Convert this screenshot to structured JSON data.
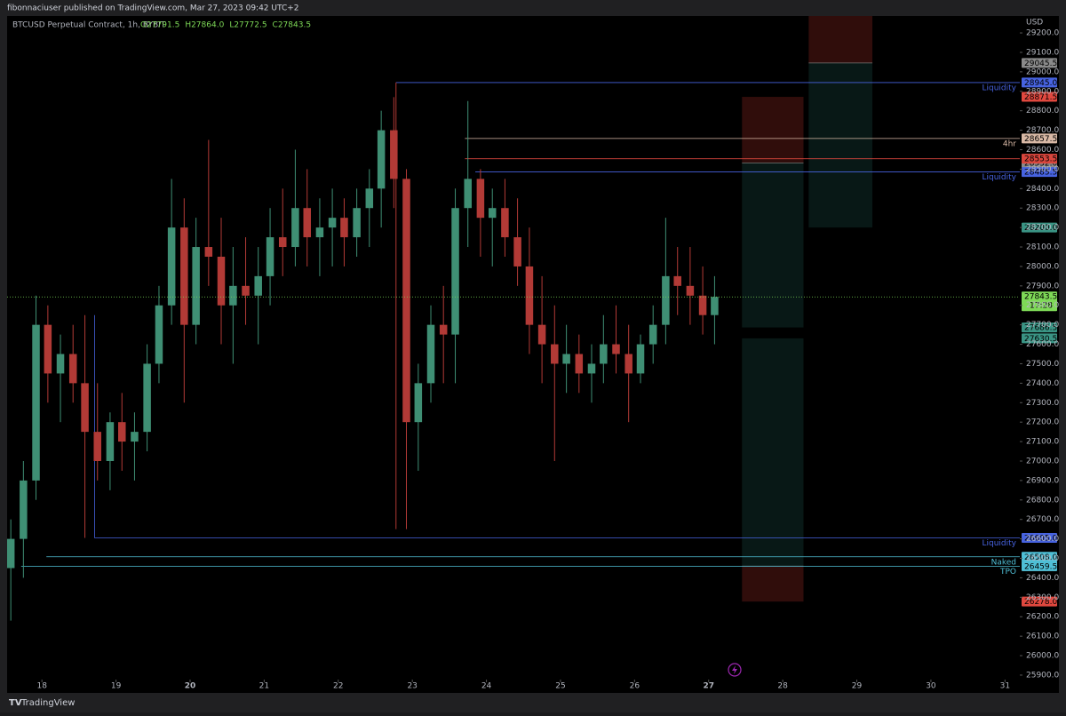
{
  "header": {
    "publisher": "fibonnaciuser published on TradingView.com, Mar 27, 2023 09:42 UTC+2"
  },
  "footer": {
    "brand": "TradingView"
  },
  "chart_data": {
    "type": "candlestick",
    "title": "BTCUSD Perpetual Contract, 1h, BYBIT",
    "legend_values": [
      "O27791.5",
      "H27864.0",
      "L27772.5",
      "C27843.5"
    ],
    "y_axis_label": "USD",
    "countdown": "17:28",
    "up_color": "#3f8f74",
    "down_color": "#b23a36",
    "x": [
      17.58,
      17.75,
      17.92,
      18.08,
      18.25,
      18.42,
      18.58,
      18.75,
      18.92,
      19.08,
      19.25,
      19.42,
      19.58,
      19.75,
      19.92,
      20.08,
      20.25,
      20.42,
      20.58,
      20.75,
      20.92,
      21.08,
      21.25,
      21.42,
      21.58,
      21.75,
      21.92,
      22.08,
      22.25,
      22.42,
      22.58,
      22.75,
      22.92,
      23.08,
      23.25,
      23.42,
      23.58,
      23.75,
      23.92,
      24.08,
      24.25,
      24.42,
      24.58,
      24.75,
      24.92,
      25.08,
      25.25,
      25.42,
      25.58,
      25.75,
      25.92,
      26.08,
      26.25,
      26.42,
      26.58,
      26.75,
      26.92,
      27.08
    ],
    "open": [
      26450,
      26600,
      26900,
      27700,
      27450,
      27550,
      27400,
      27150,
      27000,
      27200,
      27100,
      27150,
      27500,
      27800,
      28200,
      27700,
      28100,
      28050,
      27800,
      27900,
      27850,
      27950,
      28150,
      28100,
      28300,
      28150,
      28200,
      28250,
      28150,
      28300,
      28400,
      28700,
      28450,
      27200,
      27400,
      27700,
      27650,
      28300,
      28450,
      28250,
      28300,
      28150,
      28000,
      27700,
      27600,
      27500,
      27550,
      27450,
      27500,
      27600,
      27550,
      27450,
      27600,
      27700,
      27950,
      27900,
      27850,
      27750
    ],
    "high": [
      26700,
      27000,
      27850,
      27800,
      27650,
      27700,
      27750,
      27400,
      27250,
      27350,
      27250,
      27600,
      27900,
      28450,
      28350,
      28250,
      28650,
      28250,
      28100,
      28150,
      28100,
      28300,
      28400,
      28600,
      28500,
      28350,
      28400,
      28350,
      28400,
      28500,
      28800,
      28870,
      28500,
      27500,
      27800,
      27900,
      28400,
      28850,
      28500,
      28400,
      28450,
      28350,
      28200,
      27950,
      27800,
      27700,
      27650,
      27600,
      27750,
      27800,
      27700,
      27650,
      27800,
      28250,
      28100,
      28100,
      28000,
      27950
    ],
    "low": [
      26180,
      26400,
      26800,
      27300,
      27200,
      27300,
      26605,
      26900,
      26850,
      26950,
      26900,
      27050,
      27400,
      27700,
      27300,
      27600,
      27900,
      27600,
      27500,
      27700,
      27600,
      27800,
      27950,
      28000,
      28000,
      27950,
      28000,
      28000,
      28050,
      28100,
      28200,
      28300,
      26650,
      26950,
      27300,
      27400,
      27400,
      28100,
      28050,
      28000,
      28050,
      27900,
      27550,
      27400,
      27000,
      27350,
      27350,
      27300,
      27400,
      27450,
      27200,
      27400,
      27500,
      27600,
      27750,
      27700,
      27650,
      27600
    ],
    "close": [
      26600,
      26900,
      27700,
      27450,
      27550,
      27400,
      27150,
      27000,
      27200,
      27100,
      27150,
      27500,
      27800,
      28200,
      27700,
      28100,
      28050,
      27800,
      27900,
      27850,
      27950,
      28150,
      28100,
      28300,
      28150,
      28200,
      28250,
      28150,
      28300,
      28400,
      28700,
      28450,
      27200,
      27400,
      27700,
      27650,
      28300,
      28450,
      28250,
      28300,
      28150,
      28000,
      27700,
      27600,
      27500,
      27550,
      27450,
      27500,
      27600,
      27550,
      27450,
      27600,
      27700,
      27950,
      27900,
      27850,
      27750,
      27843.5
    ],
    "last_price": {
      "value": 27843.5,
      "label": "27843.5"
    },
    "last_color": "#7ed957",
    "xlim": [
      17.53,
      31.2
    ],
    "xticks": [
      18,
      19,
      20,
      21,
      22,
      23,
      24,
      25,
      26,
      27,
      28,
      29,
      30,
      31
    ],
    "ylim": [
      25877,
      29287
    ],
    "yticks": [
      {
        "value": 25900,
        "label": "25900.0"
      },
      {
        "value": 26000,
        "label": "26000.0"
      },
      {
        "value": 26100,
        "label": "26100.0"
      },
      {
        "value": 26200,
        "label": "26200.0"
      },
      {
        "value": 26300,
        "label": "26300.0"
      },
      {
        "value": 26400,
        "label": "26400.0"
      },
      {
        "value": 26500,
        "label": "26500.0"
      },
      {
        "value": 26600,
        "label": "26600.0"
      },
      {
        "value": 26700,
        "label": "26700.0"
      },
      {
        "value": 26800,
        "label": "26800.0"
      },
      {
        "value": 26900,
        "label": "26900.0"
      },
      {
        "value": 27000,
        "label": "27000.0"
      },
      {
        "value": 27100,
        "label": "27100.0"
      },
      {
        "value": 27200,
        "label": "27200.0"
      },
      {
        "value": 27300,
        "label": "27300.0"
      },
      {
        "value": 27400,
        "label": "27400.0"
      },
      {
        "value": 27500,
        "label": "27500.0"
      },
      {
        "value": 27600,
        "label": "27600.0"
      },
      {
        "value": 27700,
        "label": "27700.0"
      },
      {
        "value": 27800,
        "label": "27800.0"
      },
      {
        "value": 27900,
        "label": "27900.0"
      },
      {
        "value": 28000,
        "label": "28000.0"
      },
      {
        "value": 28100,
        "label": "28100.0"
      },
      {
        "value": 28200,
        "label": "28200.0"
      },
      {
        "value": 28300,
        "label": "28300.0"
      },
      {
        "value": 28400,
        "label": "28400.0"
      },
      {
        "value": 28500,
        "label": "28500.0"
      },
      {
        "value": 28600,
        "label": "28600.0"
      },
      {
        "value": 28700,
        "label": "28700.0"
      },
      {
        "value": 28800,
        "label": "28800.0"
      },
      {
        "value": 28900,
        "label": "28900.0"
      },
      {
        "value": 29000,
        "label": "29000.0"
      },
      {
        "value": 29100,
        "label": "29100.0"
      },
      {
        "value": 29200,
        "label": "29200.0"
      }
    ],
    "levels": [
      {
        "name": "Liquidity",
        "price": {
          "value": 28945,
          "label": "28945.0"
        },
        "x_start": 22.78,
        "color": "#4763e0"
      },
      {
        "name": "4hr",
        "price": {
          "value": 28657.5,
          "label": "28657.5"
        },
        "x_start": 23.71,
        "color": "#d9b9a6"
      },
      {
        "price": {
          "value": 28553.5,
          "label": "28553.5"
        },
        "x_start": 23.71,
        "color": "#d9463d"
      },
      {
        "name": "Liquidity",
        "price": {
          "value": 28485.5,
          "label": "28485.5"
        },
        "x_start": 23.85,
        "color": "#4763e0"
      },
      {
        "name": "Liquidity",
        "price": {
          "value": 26605,
          "label": "26605.0"
        },
        "x_start": 18.71,
        "color": "#4763e0"
      },
      {
        "name": "Naked",
        "price": {
          "value": 26508,
          "label": "26508.0"
        },
        "x_start": 18.06,
        "color": "#4fbfd6"
      },
      {
        "name": "TPO",
        "price": {
          "value": 26459.5,
          "label": "26459.5"
        },
        "x_start": 17.72,
        "color": "#4fbfd6"
      }
    ],
    "positions": [
      {
        "x_range": [
          27.45,
          28.28
        ],
        "entry": {
          "value": 28532,
          "label": "28532.0"
        },
        "stop": {
          "value": 28871.5,
          "label": "28871.5"
        },
        "target": {
          "value": 27686.5,
          "label": "27686.5"
        }
      },
      {
        "x_range": [
          27.45,
          28.28
        ],
        "entry": {
          "value": 26460,
          "label": "26460.0"
        },
        "stop": {
          "value": 26278,
          "label": "26278.0"
        },
        "target": {
          "value": 27630.5,
          "label": "27630.5"
        }
      },
      {
        "x_range": [
          28.35,
          29.21
        ],
        "entry": {
          "value": 29045.5,
          "label": "29045.5"
        },
        "stop": 29300,
        "target": {
          "value": 28200,
          "label": "28200.0"
        }
      }
    ]
  }
}
